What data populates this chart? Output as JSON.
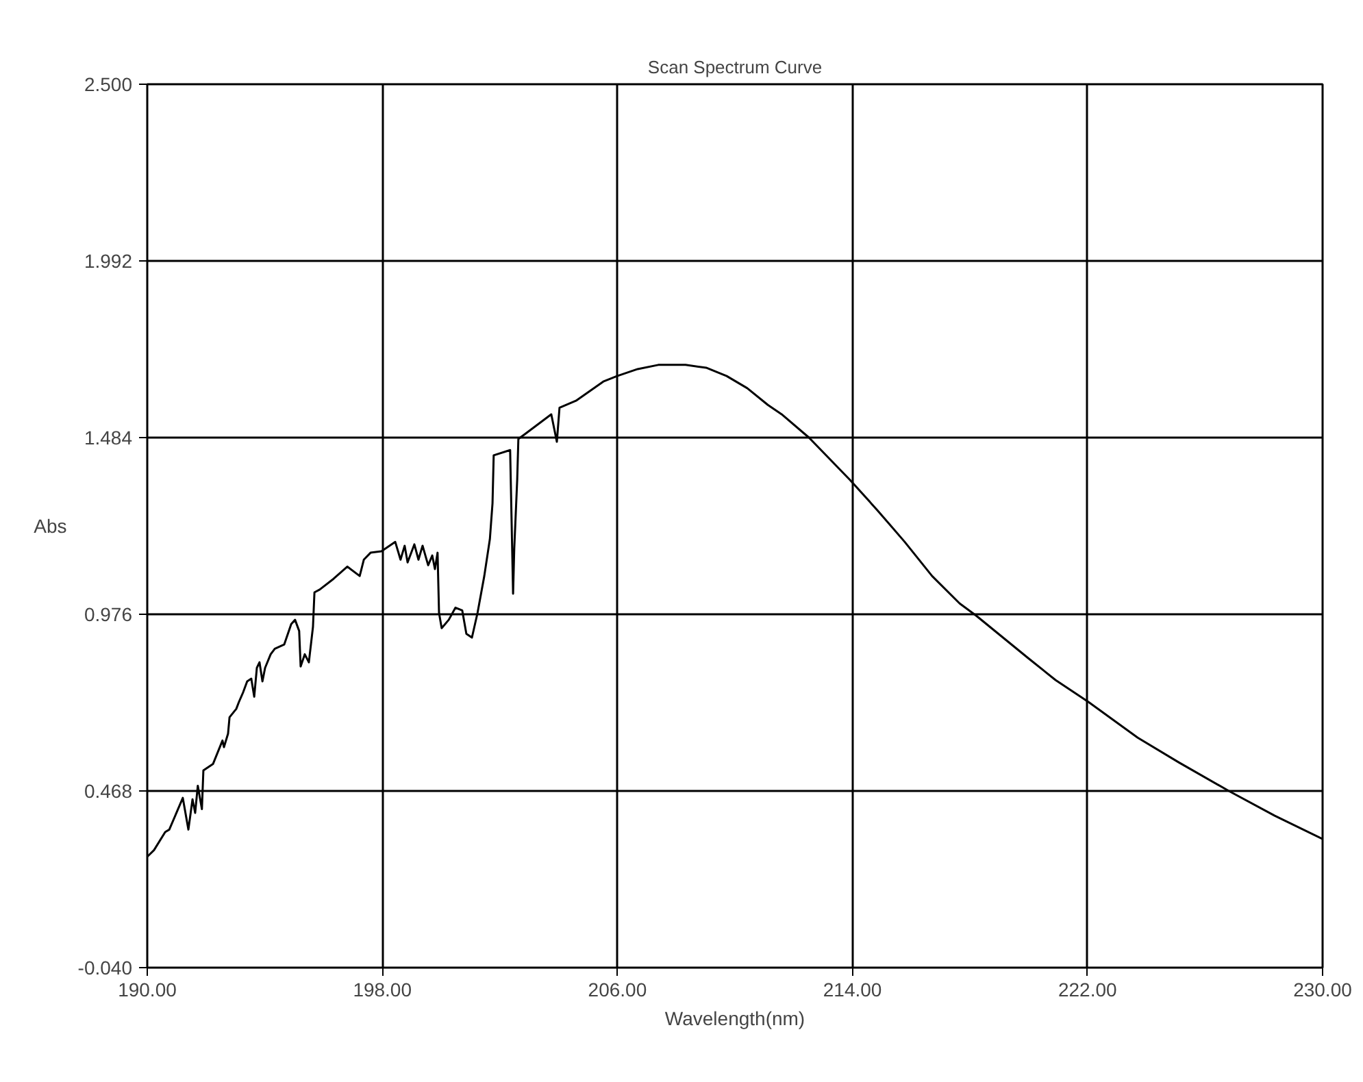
{
  "chart_data": {
    "type": "line",
    "title": "Scan Spectrum Curve",
    "xlabel": "Wavelength(nm)",
    "ylabel": "Abs",
    "xlim": [
      190,
      230
    ],
    "ylim": [
      -0.04,
      2.5
    ],
    "xticks": [
      {
        "value": 190,
        "label": "190.00"
      },
      {
        "value": 198,
        "label": "198.00"
      },
      {
        "value": 206,
        "label": "206.00"
      },
      {
        "value": 214,
        "label": "214.00"
      },
      {
        "value": 222,
        "label": "222.00"
      },
      {
        "value": 230,
        "label": "230.00"
      }
    ],
    "yticks": [
      {
        "value": -0.04,
        "label": "-0.040"
      },
      {
        "value": 0.468,
        "label": "0.468"
      },
      {
        "value": 0.976,
        "label": "0.976"
      },
      {
        "value": 1.484,
        "label": "1.484"
      },
      {
        "value": 1.992,
        "label": "1.992"
      },
      {
        "value": 2.5,
        "label": "2.500"
      }
    ],
    "grid": true,
    "series": [
      {
        "color": "#000000",
        "x": [
          190.0,
          190.23,
          190.61,
          190.75,
          191.21,
          191.4,
          191.54,
          191.63,
          191.72,
          191.86,
          191.91,
          192.24,
          192.56,
          192.61,
          192.75,
          192.8,
          193.03,
          193.12,
          193.26,
          193.4,
          193.54,
          193.64,
          193.73,
          193.82,
          193.92,
          194.01,
          194.2,
          194.34,
          194.66,
          194.9,
          195.03,
          195.17,
          195.22,
          195.36,
          195.5,
          195.64,
          195.69,
          195.87,
          196.34,
          196.81,
          197.23,
          197.37,
          197.6,
          197.97,
          198.44,
          198.62,
          198.76,
          198.86,
          199.09,
          199.23,
          199.37,
          199.56,
          199.7,
          199.79,
          199.88,
          199.93,
          200.02,
          200.26,
          200.49,
          200.72,
          200.86,
          201.05,
          201.24,
          201.47,
          201.66,
          201.75,
          201.79,
          202.35,
          202.4,
          202.45,
          202.49,
          202.59,
          202.63,
          202.82,
          203.75,
          203.94,
          204.03,
          204.59,
          205.52,
          205.99,
          206.69,
          207.39,
          208.32,
          209.02,
          209.72,
          210.42,
          211.12,
          211.59,
          212.52,
          213.92,
          214.85,
          215.78,
          216.71,
          217.65,
          218.21,
          219.98,
          220.91,
          222.03,
          223.71,
          225.11,
          226.83,
          228.37,
          230.0
        ],
        "values": [
          0.279,
          0.298,
          0.35,
          0.357,
          0.448,
          0.357,
          0.444,
          0.405,
          0.483,
          0.416,
          0.527,
          0.546,
          0.613,
          0.594,
          0.633,
          0.68,
          0.704,
          0.724,
          0.751,
          0.783,
          0.791,
          0.739,
          0.822,
          0.838,
          0.783,
          0.822,
          0.861,
          0.877,
          0.889,
          0.948,
          0.96,
          0.928,
          0.826,
          0.861,
          0.838,
          0.94,
          1.039,
          1.047,
          1.078,
          1.113,
          1.086,
          1.133,
          1.153,
          1.157,
          1.184,
          1.133,
          1.173,
          1.125,
          1.177,
          1.133,
          1.173,
          1.117,
          1.145,
          1.106,
          1.153,
          0.98,
          0.936,
          0.96,
          0.995,
          0.987,
          0.92,
          0.909,
          0.98,
          1.086,
          1.192,
          1.295,
          1.433,
          1.448,
          1.243,
          1.035,
          1.165,
          1.362,
          1.48,
          1.492,
          1.551,
          1.472,
          1.57,
          1.59,
          1.645,
          1.661,
          1.681,
          1.693,
          1.693,
          1.685,
          1.661,
          1.626,
          1.578,
          1.551,
          1.484,
          1.362,
          1.275,
          1.184,
          1.086,
          1.007,
          0.972,
          0.85,
          0.787,
          0.724,
          0.621,
          0.55,
          0.467,
          0.397,
          0.33
        ]
      }
    ]
  }
}
